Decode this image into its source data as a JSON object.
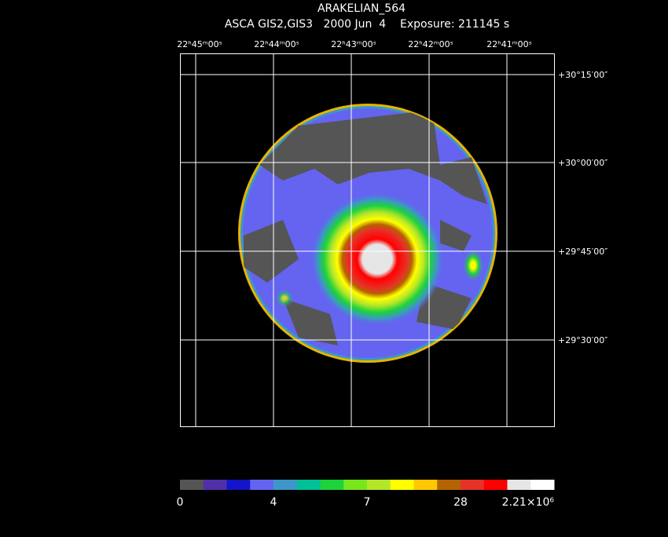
{
  "header": {
    "title": "ARAKELIAN_564",
    "subtitle": "ASCA GIS2,GIS3   2000 Jun  4    Exposure: 211145 s"
  },
  "ra_labels": [
    "22ʰ45ᵐ00ˢ",
    "22ʰ44ᵐ00ˢ",
    "22ʰ43ᵐ00ˢ",
    "22ʰ42ᵐ00ˢ",
    "22ʰ41ᵐ00ˢ"
  ],
  "dec_labels": [
    "+30°15′00″",
    "+30°00′00″",
    "+29°45′00″",
    "+29°30′00″"
  ],
  "colorbar": {
    "colors": [
      "#555555",
      "#5030a8",
      "#1414c8",
      "#6464f0",
      "#3c96c8",
      "#00c096",
      "#1ed23c",
      "#78e61e",
      "#b4e628",
      "#ffff00",
      "#ffc800",
      "#b46400",
      "#e63228",
      "#ff0000",
      "#e6e6e6",
      "#ffffff"
    ],
    "labels": [
      "0",
      "4",
      "7",
      "28",
      "2.21×10⁶"
    ]
  }
}
